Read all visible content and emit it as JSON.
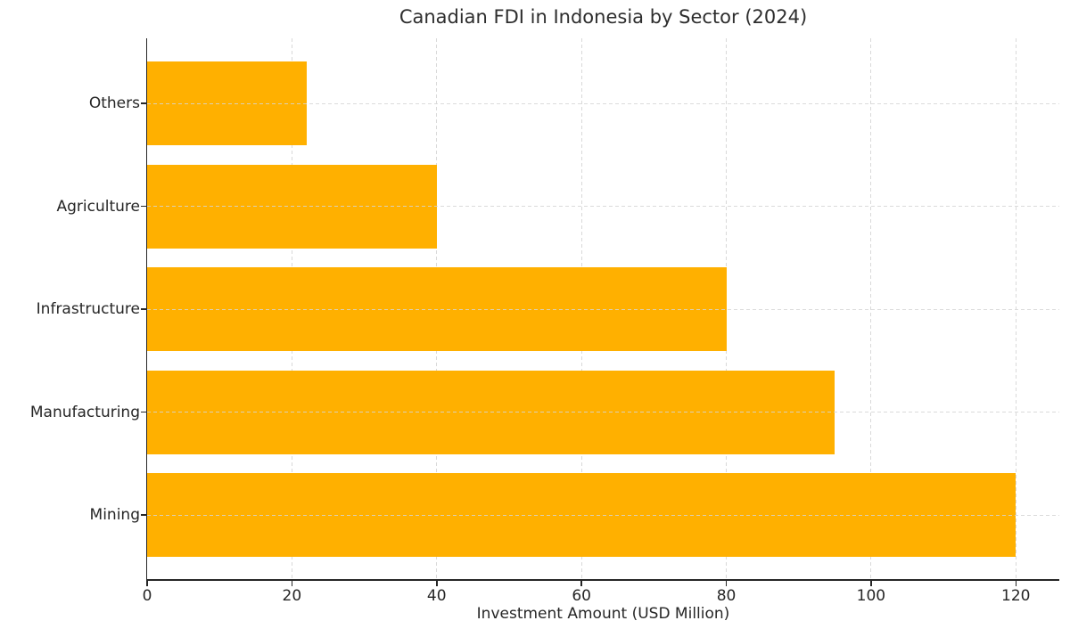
{
  "title": "Canadian FDI in Indonesia by Sector (2024)",
  "chart_data": {
    "type": "bar",
    "orientation": "horizontal",
    "title": "Canadian FDI in Indonesia by Sector (2024)",
    "xlabel": "Investment Amount (USD Million)",
    "ylabel": "",
    "categories_top_to_bottom": [
      "Others",
      "Agriculture",
      "Infrastructure",
      "Manufacturing",
      "Mining"
    ],
    "values": [
      22,
      40,
      80,
      95,
      120
    ],
    "xticks": [
      0,
      20,
      40,
      60,
      80,
      100,
      120
    ],
    "xlim": [
      0,
      126
    ],
    "grid": "dashed, light gray, vertical behind bars, horizontal in front",
    "legend": "none",
    "colors": {
      "bar": "#FFB000",
      "grid": "#D9D9D9",
      "spine": "#262626",
      "text": "#262626",
      "background": "#FFFFFF"
    }
  }
}
